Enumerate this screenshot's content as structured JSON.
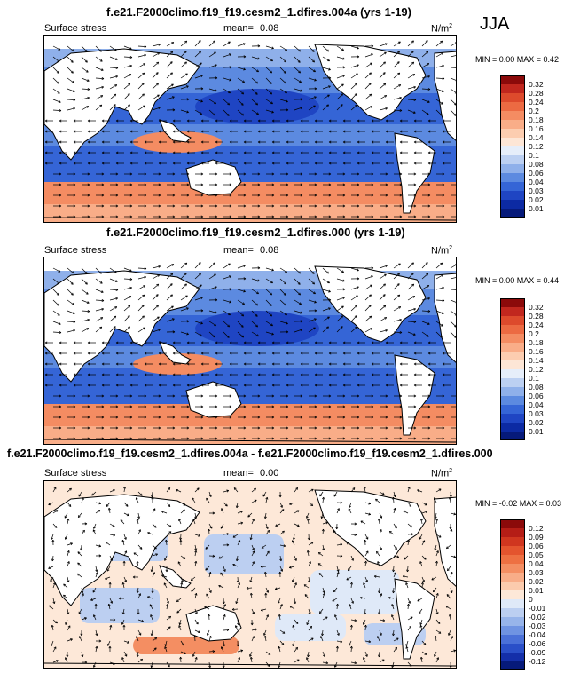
{
  "season": "JJA",
  "panels": [
    {
      "title": "f.e21.F2000climo.f19_f19.cesm2_1.dfires.004a (yrs 1-19)",
      "variable": "Surface stress",
      "mean_label": "mean=",
      "mean_value": "0.08",
      "units": "N/m",
      "units_sup": "2",
      "min_max": "MIN =  0.00 MAX =  0.42",
      "colorbar_labels": [
        "0.32",
        "0.28",
        "0.24",
        "0.2",
        "0.18",
        "0.16",
        "0.14",
        "0.12",
        "0.1",
        "0.08",
        "0.06",
        "0.04",
        "0.03",
        "0.02",
        "0.01"
      ],
      "colorbar_colors": [
        "#8b0a0a",
        "#c1271e",
        "#dd4a2c",
        "#ec6a42",
        "#f48c62",
        "#f9ad88",
        "#fccdb0",
        "#fde6d6",
        "#e6eefa",
        "#bcd0f2",
        "#8fb0ea",
        "#5c8ae0",
        "#3565d6",
        "#1f45c3",
        "#0c2aa3",
        "#061a7a"
      ],
      "regime": "full"
    },
    {
      "title": "f.e21.F2000climo.f19_f19.cesm2_1.dfires.000 (yrs 1-19)",
      "variable": "Surface stress",
      "mean_label": "mean=",
      "mean_value": "0.08",
      "units": "N/m",
      "units_sup": "2",
      "min_max": "MIN =  0.00 MAX =  0.44",
      "colorbar_labels": [
        "0.32",
        "0.28",
        "0.24",
        "0.2",
        "0.18",
        "0.16",
        "0.14",
        "0.12",
        "0.1",
        "0.08",
        "0.06",
        "0.04",
        "0.03",
        "0.02",
        "0.01"
      ],
      "colorbar_colors": [
        "#8b0a0a",
        "#c1271e",
        "#dd4a2c",
        "#ec6a42",
        "#f48c62",
        "#f9ad88",
        "#fccdb0",
        "#fde6d6",
        "#e6eefa",
        "#bcd0f2",
        "#8fb0ea",
        "#5c8ae0",
        "#3565d6",
        "#1f45c3",
        "#0c2aa3",
        "#061a7a"
      ],
      "regime": "full"
    },
    {
      "title": "f.e21.F2000climo.f19_f19.cesm2_1.dfires.004a - f.e21.F2000climo.f19_f19.cesm2_1.dfires.000",
      "variable": "Surface stress",
      "mean_label": "mean=",
      "mean_value": "0.00",
      "units": "N/m",
      "units_sup": "2",
      "min_max": "MIN = -0.02 MAX =  0.03",
      "colorbar_labels": [
        "0.12",
        "0.09",
        "0.06",
        "0.05",
        "0.04",
        "0.03",
        "0.02",
        "0.01",
        "0",
        "-0.01",
        "-0.02",
        "-0.03",
        "-0.04",
        "-0.06",
        "-0.09",
        "-0.12"
      ],
      "colorbar_colors": [
        "#8b0a0a",
        "#b51d16",
        "#d0361f",
        "#e4542e",
        "#ee7042",
        "#f48e62",
        "#f8ad88",
        "#fbcbad",
        "#fde8d8",
        "#dfe9f8",
        "#bccff1",
        "#97b4ea",
        "#6f93e2",
        "#4a70d8",
        "#2a4fc8",
        "#142fa9",
        "#061a7a"
      ],
      "regime": "diff"
    }
  ],
  "chart_data": [
    {
      "type": "heatmap",
      "title": "f.e21.F2000climo.f19_f19.cesm2_1.dfires.004a (yrs 1-19)",
      "variable": "Surface stress",
      "mean": 0.08,
      "min": 0.0,
      "max": 0.42,
      "units": "N/m2",
      "levels": [
        0.01,
        0.02,
        0.03,
        0.04,
        0.06,
        0.08,
        0.1,
        0.12,
        0.14,
        0.16,
        0.18,
        0.2,
        0.24,
        0.28,
        0.32
      ],
      "overlay": "wind stress vectors"
    },
    {
      "type": "heatmap",
      "title": "f.e21.F2000climo.f19_f19.cesm2_1.dfires.000 (yrs 1-19)",
      "variable": "Surface stress",
      "mean": 0.08,
      "min": 0.0,
      "max": 0.44,
      "units": "N/m2",
      "levels": [
        0.01,
        0.02,
        0.03,
        0.04,
        0.06,
        0.08,
        0.1,
        0.12,
        0.14,
        0.16,
        0.18,
        0.2,
        0.24,
        0.28,
        0.32
      ],
      "overlay": "wind stress vectors"
    },
    {
      "type": "heatmap",
      "title": "f.e21.F2000climo.f19_f19.cesm2_1.dfires.004a - f.e21.F2000climo.f19_f19.cesm2_1.dfires.000",
      "variable": "Surface stress",
      "mean": 0.0,
      "min": -0.02,
      "max": 0.03,
      "units": "N/m2",
      "levels": [
        -0.12,
        -0.09,
        -0.06,
        -0.04,
        -0.03,
        -0.02,
        -0.01,
        0,
        0.01,
        0.02,
        0.03,
        0.04,
        0.05,
        0.06,
        0.09,
        0.12
      ],
      "overlay": "wind stress vectors"
    }
  ]
}
